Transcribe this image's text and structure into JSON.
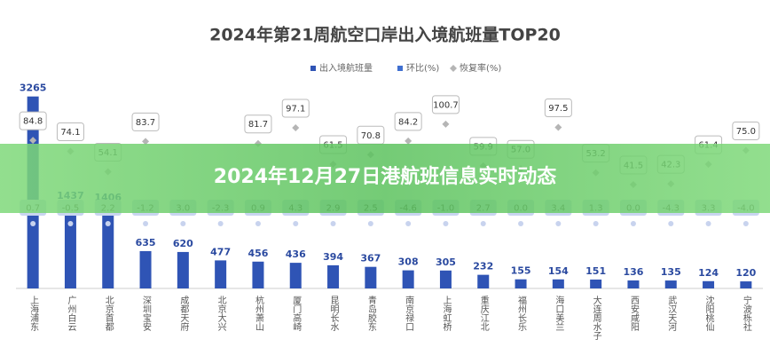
{
  "chart_data": {
    "type": "bar-line",
    "title": "2024年第21周航空口岸出入境航班量TOP20",
    "categories": [
      "上海浦东",
      "广州白云",
      "北京首都",
      "深圳宝安",
      "成都天府",
      "北京大兴",
      "杭州萧山",
      "厦门高崎",
      "昆明长水",
      "青岛胶东",
      "南京禄口",
      "上海虹桥",
      "重庆江北",
      "福州长乐",
      "海口美兰",
      "大连周水子",
      "西安咸阳",
      "武汉天河",
      "沈阳桃仙",
      "宁波栎社"
    ],
    "series": [
      {
        "name": "出入境航班量",
        "color": "#2f54b5",
        "values": [
          3265,
          1437,
          1406,
          635,
          620,
          477,
          456,
          436,
          394,
          367,
          308,
          305,
          232,
          155,
          154,
          151,
          136,
          135,
          124,
          120
        ]
      },
      {
        "name": "环比(%)",
        "color": "#3f6fd0",
        "values": [
          0.7,
          -0.5,
          2.2,
          -1.2,
          3.0,
          -2.3,
          0.9,
          4.3,
          2.9,
          2.5,
          -4.6,
          -1.0,
          2.7,
          0.0,
          3.4,
          1.3,
          0.0,
          -4.3,
          3.3,
          -4.0
        ],
        "value_labels": [
          "0.7",
          "-0.5",
          "2.2",
          "-1.2",
          "3.0",
          "-2.3",
          "0.9",
          "4.3",
          "2.9",
          "2.5",
          "-4.6",
          "-1.0",
          "2.7",
          "0.0",
          "3.4",
          "1.3",
          "0.0",
          "-4.3",
          "3.3",
          "-4.0"
        ]
      },
      {
        "name": "恢复率(%)",
        "color": "#b5b5b5",
        "axis": "y2",
        "values": [
          84.8,
          74.1,
          54.1,
          83.7,
          null,
          null,
          81.7,
          97.1,
          61.5,
          70.8,
          84.2,
          100.7,
          59.9,
          57.0,
          97.5,
          53.2,
          41.5,
          42.3,
          61.4,
          75.0
        ],
        "value_labels": [
          "84.8",
          "74.1",
          "54.1",
          "83.7",
          null,
          null,
          "81.7",
          "97.1",
          "61.5",
          "70.8",
          "84.2",
          "100.7",
          "59.9",
          "57.0",
          "97.5",
          "53.2",
          "41.5",
          "42.3",
          "61.4",
          "75.0"
        ]
      }
    ],
    "ylim": [
      0,
      4000
    ],
    "y2lim": [
      -60,
      170
    ]
  },
  "banner": {
    "text": "2024年12月27日港航班信息实时动态"
  }
}
